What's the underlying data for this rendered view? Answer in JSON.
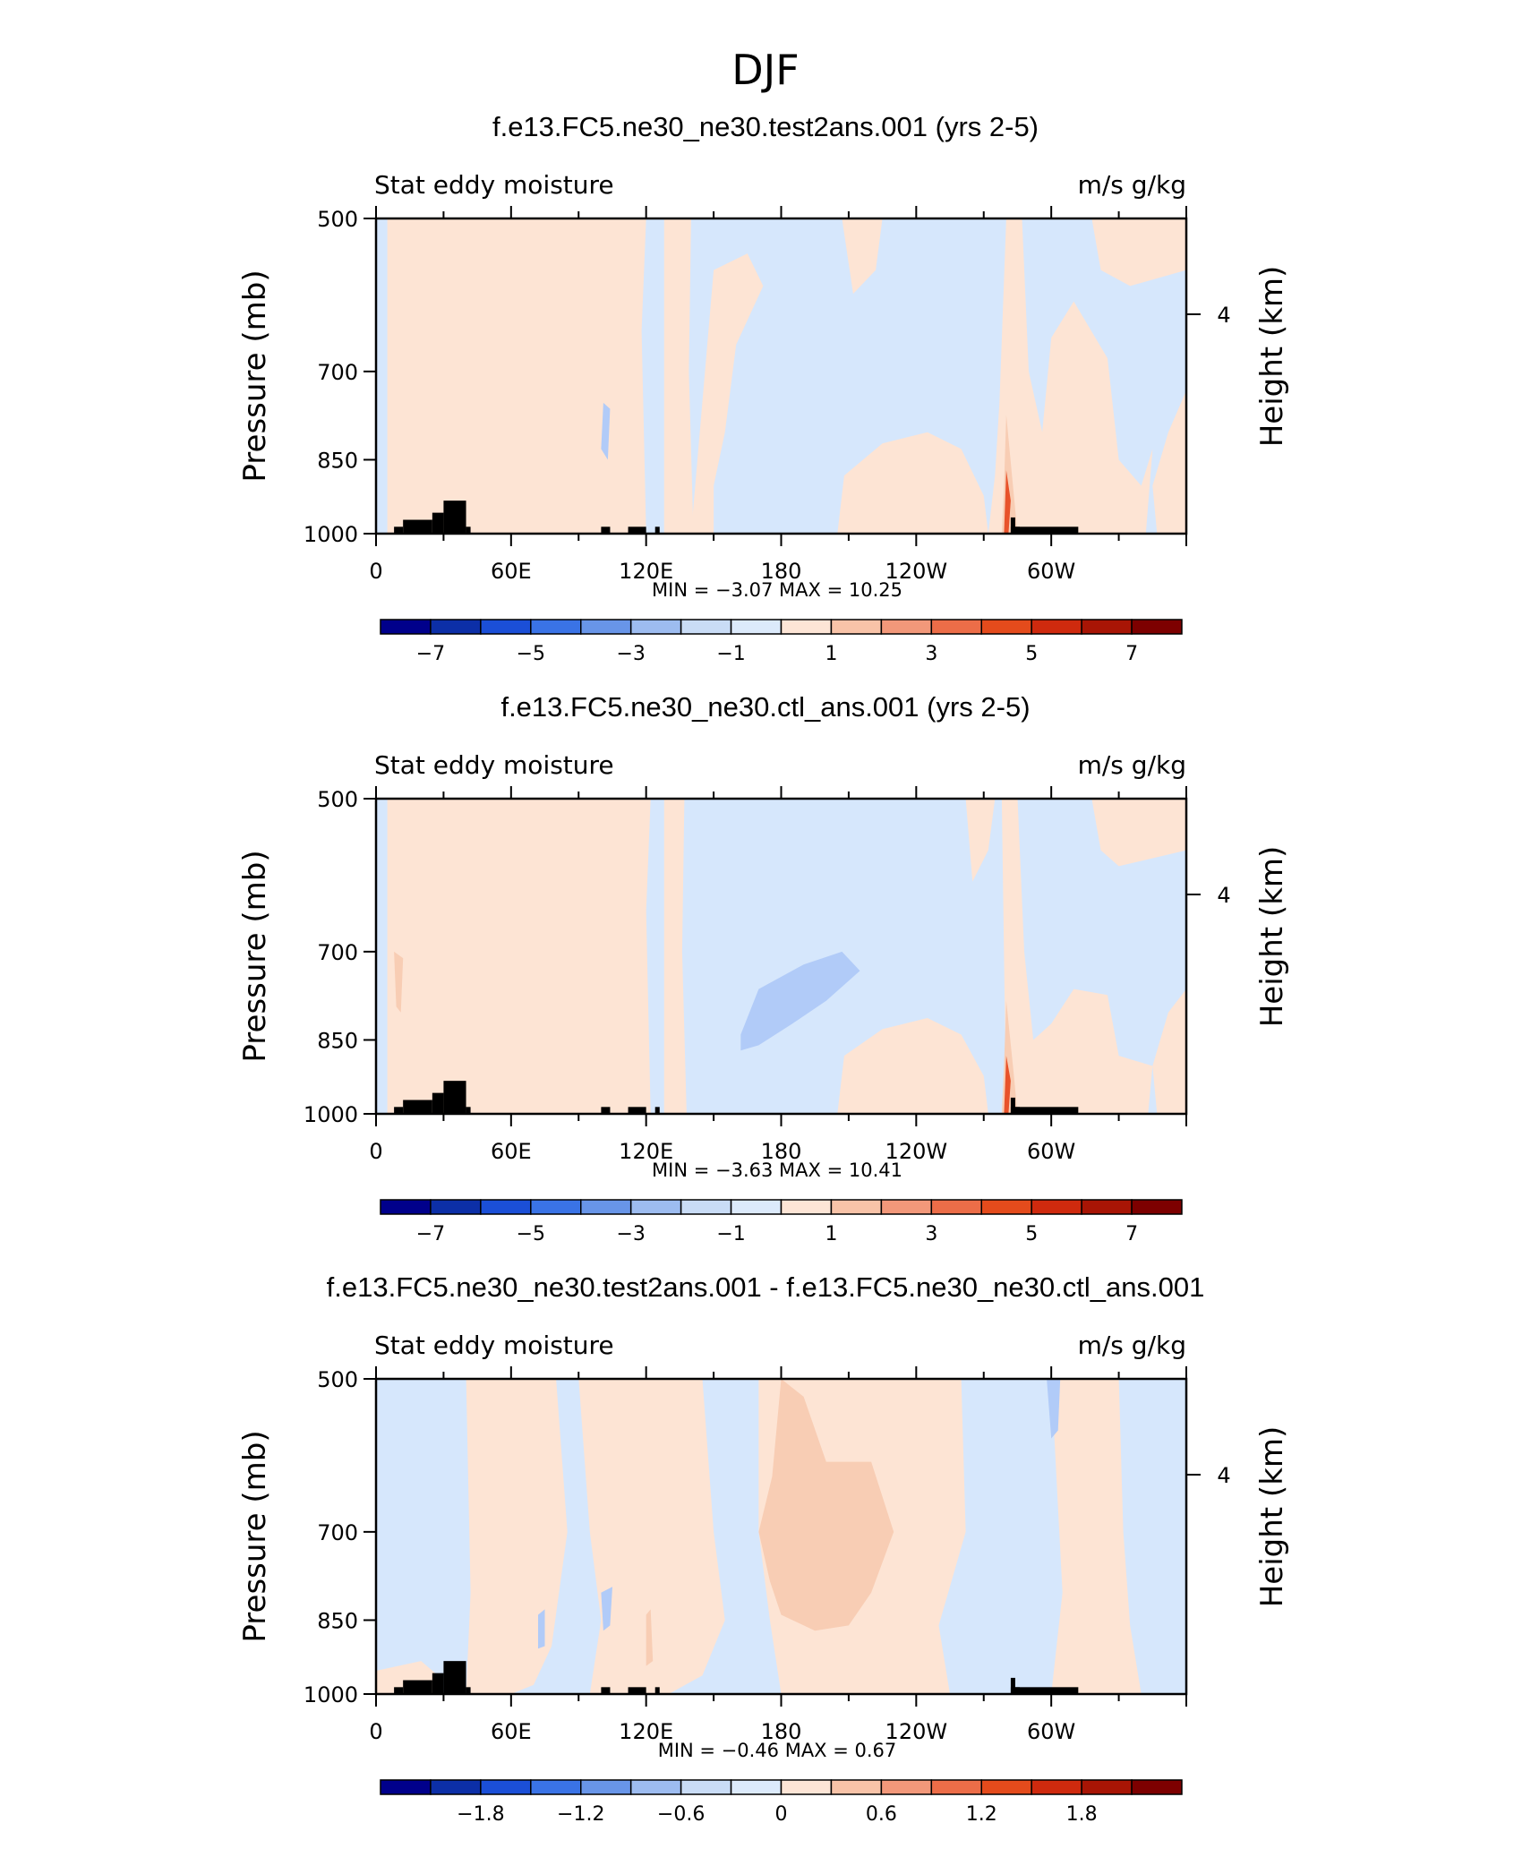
{
  "figure_title": "DJF",
  "chart_data": [
    {
      "type": "heatmap",
      "title": "f.e13.FC5.ne30_ne30.test2ans.001 (yrs 2-5)",
      "left_string": "Stat eddy moisture",
      "right_string": "m/s g/kg",
      "ylabel": "Pressure (mb)",
      "ylabel_right": "Height (km)",
      "x_ticks": [
        "0",
        "60E",
        "120E",
        "180",
        "120W",
        "60W"
      ],
      "x_tick_values": [
        0,
        60,
        120,
        180,
        240,
        300
      ],
      "xlim": [
        0,
        360
      ],
      "y_ticks": [
        "500",
        "700",
        "850",
        "1000"
      ],
      "y_tick_values": [
        500,
        700,
        850,
        1000
      ],
      "ylim": [
        1000,
        500
      ],
      "right_ticks": [
        "4"
      ],
      "right_tick_values": [
        4
      ],
      "stats_text": "MIN =    −3.07   MAX =    10.25",
      "min": -3.07,
      "max": 10.25,
      "colorbar_labels": [
        "−7",
        "−5",
        "−3",
        "−1",
        "1",
        "3",
        "5",
        "7"
      ],
      "colorbar_levels": [
        -7,
        -5,
        -3,
        -1,
        1,
        3,
        5,
        7
      ],
      "fields": {
        "negative_regions_lon": [
          [
            120,
            140
          ],
          [
            140,
            205
          ],
          [
            205,
            262
          ],
          [
            327,
            335
          ],
          [
            342,
            360
          ]
        ],
        "positive_regions_lon": [
          [
            5,
            120
          ],
          [
            140,
            165
          ],
          [
            205,
            225
          ],
          [
            268,
            330
          ],
          [
            335,
            360
          ]
        ],
        "strong_max_lon": 281,
        "strong_max_value": 10.25
      }
    },
    {
      "type": "heatmap",
      "title": "f.e13.FC5.ne30_ne30.ctl_ans.001 (yrs 2-5)",
      "left_string": "Stat eddy moisture",
      "right_string": "m/s g/kg",
      "ylabel": "Pressure (mb)",
      "ylabel_right": "Height (km)",
      "x_ticks": [
        "0",
        "60E",
        "120E",
        "180",
        "120W",
        "60W"
      ],
      "x_tick_values": [
        0,
        60,
        120,
        180,
        240,
        300
      ],
      "xlim": [
        0,
        360
      ],
      "y_ticks": [
        "500",
        "700",
        "850",
        "1000"
      ],
      "y_tick_values": [
        500,
        700,
        850,
        1000
      ],
      "ylim": [
        1000,
        500
      ],
      "right_ticks": [
        "4"
      ],
      "right_tick_values": [
        4
      ],
      "stats_text": "MIN =    −3.63   MAX =    10.41",
      "min": -3.63,
      "max": 10.41,
      "colorbar_labels": [
        "−7",
        "−5",
        "−3",
        "−1",
        "1",
        "3",
        "5",
        "7"
      ],
      "colorbar_levels": [
        -7,
        -5,
        -3,
        -1,
        1,
        3,
        5,
        7
      ],
      "fields": {
        "negative_regions_lon": [
          [
            120,
            262
          ],
          [
            327,
            335
          ],
          [
            340,
            360
          ]
        ],
        "positive_regions_lon": [
          [
            5,
            120
          ],
          [
            205,
            225
          ],
          [
            268,
            330
          ],
          [
            335,
            360
          ]
        ],
        "strong_max_lon": 281,
        "strong_max_value": 10.41
      }
    },
    {
      "type": "heatmap",
      "title": "f.e13.FC5.ne30_ne30.test2ans.001 - f.e13.FC5.ne30_ne30.ctl_ans.001",
      "left_string": "Stat eddy moisture",
      "right_string": "m/s g/kg",
      "ylabel": "Pressure (mb)",
      "ylabel_right": "Height (km)",
      "x_ticks": [
        "0",
        "60E",
        "120E",
        "180",
        "120W",
        "60W"
      ],
      "x_tick_values": [
        0,
        60,
        120,
        180,
        240,
        300
      ],
      "xlim": [
        0,
        360
      ],
      "y_ticks": [
        "500",
        "700",
        "850",
        "1000"
      ],
      "y_tick_values": [
        500,
        700,
        850,
        1000
      ],
      "ylim": [
        1000,
        500
      ],
      "right_ticks": [
        "4"
      ],
      "right_tick_values": [
        4
      ],
      "stats_text": "MIN =    −0.46   MAX =    0.67",
      "min": -0.46,
      "max": 0.67,
      "colorbar_labels": [
        "−1.8",
        "−1.2",
        "−0.6",
        "0",
        "0.6",
        "1.2",
        "1.8"
      ],
      "colorbar_levels": [
        -1.8,
        -1.2,
        -0.6,
        0,
        0.6,
        1.2,
        1.8
      ],
      "fields": {
        "negative_regions_lon": [
          [
            0,
            40
          ],
          [
            80,
            95
          ],
          [
            145,
            170
          ],
          [
            260,
            300
          ],
          [
            330,
            360
          ]
        ],
        "positive_regions_lon": [
          [
            40,
            80
          ],
          [
            95,
            145
          ],
          [
            170,
            260
          ],
          [
            300,
            330
          ]
        ],
        "strong_max_lon": 195,
        "strong_max_value": 0.67
      }
    }
  ],
  "colors": {
    "colorbar_fill": [
      "#00008b",
      "#0c2fa7",
      "#1b4fd7",
      "#3a73e6",
      "#6895e8",
      "#9dbcf0",
      "#c9dcf6",
      "#dceafb",
      "#fde5d6",
      "#f8c3a8",
      "#f2987a",
      "#ec6d48",
      "#e44b1c",
      "#cf2a0e",
      "#a81505",
      "#7d0000"
    ],
    "light_blue": "#d6e7fc",
    "light_orange": "#fde4d4",
    "mid_blue": "#b1cbf8",
    "mid_orange": "#f8cdb4",
    "topography": "#000000"
  }
}
